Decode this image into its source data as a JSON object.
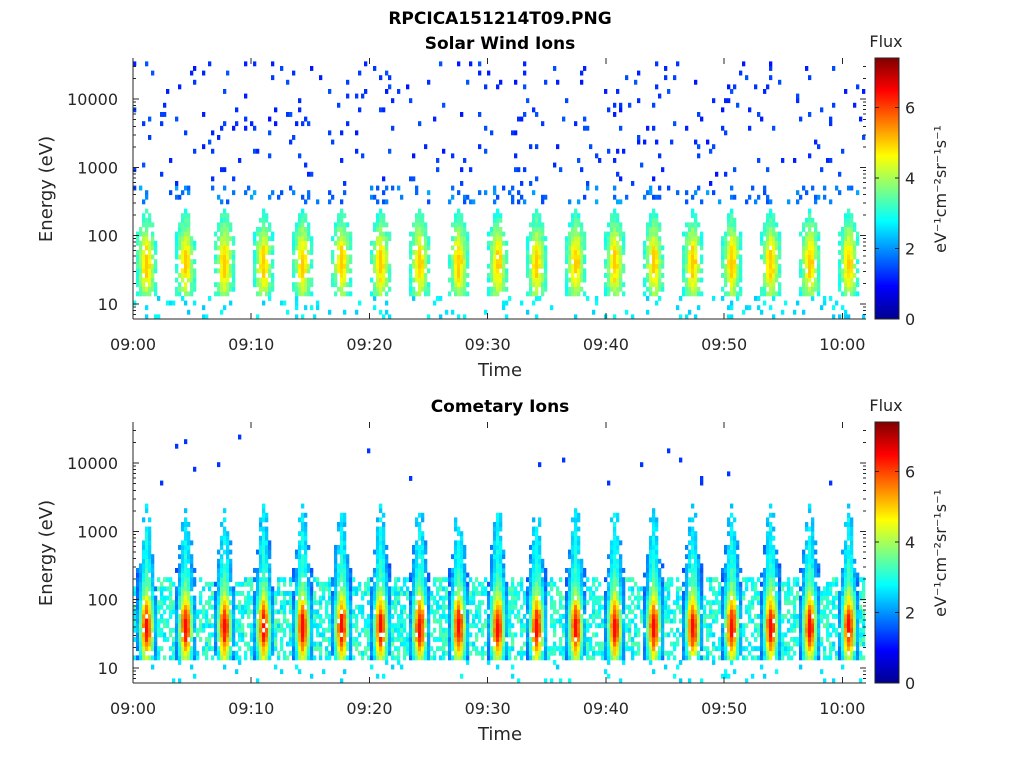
{
  "figure": {
    "title": "RPCICA151214T09.PNG"
  },
  "colormap": "jet",
  "chart_data": [
    {
      "type": "heatmap",
      "title": "Solar Wind Ions",
      "xlabel": "Time",
      "ylabel": "Energy (eV)",
      "x_range": [
        "09:00",
        "10:02"
      ],
      "x_ticks": [
        "09:00",
        "09:10",
        "09:20",
        "09:30",
        "09:40",
        "09:50",
        "10:00"
      ],
      "y_scale": "log",
      "ylim": [
        6,
        40000
      ],
      "y_ticks": [
        "10",
        "100",
        "1000",
        "10000"
      ],
      "colorbar": {
        "label": "Flux",
        "units": "eV⁻¹cm⁻²sr⁻¹s⁻¹",
        "range": [
          0,
          7.4
        ],
        "ticks": [
          "0",
          "2",
          "4",
          "6"
        ]
      },
      "burst_period_min": 3.3,
      "burst_count": 19,
      "peak_energy_eV": 38,
      "peak_flux": 5.0,
      "high_energy_sparse_flux": 1.3
    },
    {
      "type": "heatmap",
      "title": "Cometary Ions",
      "xlabel": "Time",
      "ylabel": "Energy (eV)",
      "x_range": [
        "09:00",
        "10:02"
      ],
      "x_ticks": [
        "09:00",
        "09:10",
        "09:20",
        "09:30",
        "09:40",
        "09:50",
        "10:00"
      ],
      "y_scale": "log",
      "ylim": [
        6,
        40000
      ],
      "y_ticks": [
        "10",
        "100",
        "1000",
        "10000"
      ],
      "colorbar": {
        "label": "Flux",
        "units": "eV⁻¹cm⁻²sr⁻¹s⁻¹",
        "range": [
          0,
          7.4
        ],
        "ticks": [
          "0",
          "2",
          "4",
          "6"
        ]
      },
      "burst_period_min": 3.3,
      "burst_count": 19,
      "peak_energy_eV": 38,
      "peak_flux": 6.4,
      "burst_top_energy_eV": 2000
    }
  ]
}
